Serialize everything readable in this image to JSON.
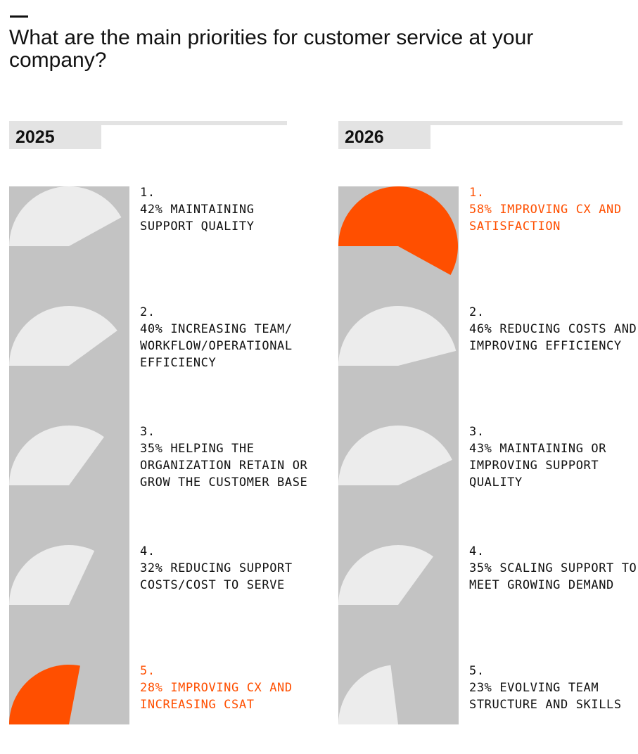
{
  "title": "What are the main priorities for customer service at your company?",
  "colors": {
    "highlight": "#ff4f00",
    "wedge": "#ececec",
    "strip": "#c3c3c3",
    "text": "#111111"
  },
  "chart_data": [
    {
      "type": "pie",
      "title": "2025",
      "items": [
        {
          "rank": "1.",
          "value": 42,
          "label": "42% MAINTAINING SUPPORT QUALITY",
          "highlight": false
        },
        {
          "rank": "2.",
          "value": 40,
          "label": "40% INCREASING TEAM/ WORKFLOW/OPERATIONAL EFFICIENCY",
          "highlight": false
        },
        {
          "rank": "3.",
          "value": 35,
          "label": "35% HELPING THE ORGANIZATION RETAIN OR GROW THE CUSTOMER BASE",
          "highlight": false
        },
        {
          "rank": "4.",
          "value": 32,
          "label": "32% REDUCING SUPPORT COSTS/COST TO SERVE",
          "highlight": false
        },
        {
          "rank": "5.",
          "value": 28,
          "label": "28% IMPROVING CX AND INCREASING CSAT",
          "highlight": true
        }
      ]
    },
    {
      "type": "pie",
      "title": "2026",
      "items": [
        {
          "rank": "1.",
          "value": 58,
          "label": "58% IMPROVING CX AND SATISFACTION",
          "highlight": true
        },
        {
          "rank": "2.",
          "value": 46,
          "label": "46% REDUCING COSTS AND IMPROVING EFFICIENCY",
          "highlight": false
        },
        {
          "rank": "3.",
          "value": 43,
          "label": "43% MAINTAINING OR IMPROVING SUPPORT QUALITY",
          "highlight": false
        },
        {
          "rank": "4.",
          "value": 35,
          "label": "35% SCALING SUPPORT TO MEET GROWING DEMAND",
          "highlight": false
        },
        {
          "rank": "5.",
          "value": 23,
          "label": "23% EVOLVING TEAM STRUCTURE AND SKILLS",
          "highlight": false
        }
      ]
    }
  ]
}
